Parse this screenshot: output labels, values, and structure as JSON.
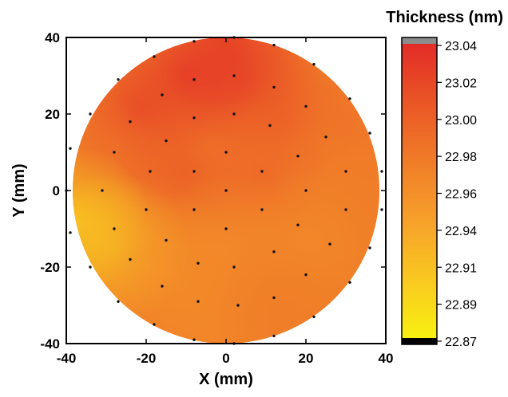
{
  "chart_data": {
    "type": "heatmap",
    "title": "",
    "xlabel": "X (mm)",
    "ylabel": "Y (mm)",
    "xlim": [
      -40,
      40
    ],
    "ylim": [
      -40,
      40
    ],
    "x_ticks": [
      "-40",
      "-20",
      "0",
      "20",
      "40"
    ],
    "y_ticks": [
      "40",
      "20",
      "0",
      "-20",
      "-40"
    ],
    "colorbar": {
      "title": "Thickness (nm)",
      "ticks": [
        "23.04",
        "23.02",
        "23.00",
        "22.98",
        "22.96",
        "22.94",
        "22.91",
        "22.89",
        "22.87"
      ],
      "range": [
        22.87,
        23.04
      ],
      "colors": [
        "#f8f010",
        "#f9c820",
        "#f6a02a",
        "#f07c28",
        "#ea5626",
        "#e32c27"
      ],
      "over_color": "#8c8c8c",
      "under_color": "#000000"
    },
    "wafer": {
      "center": [
        0,
        0
      ],
      "radius_mm": 40
    },
    "thickness_field": [
      {
        "x": 0,
        "y": 40,
        "value": 23.02
      },
      {
        "x": -10,
        "y": 30,
        "value": 23.03
      },
      {
        "x": 5,
        "y": 28,
        "value": 23.03
      },
      {
        "x": -22,
        "y": 20,
        "value": 23.02
      },
      {
        "x": 15,
        "y": 20,
        "value": 23.0
      },
      {
        "x": 30,
        "y": 15,
        "value": 22.98
      },
      {
        "x": -30,
        "y": 5,
        "value": 22.98
      },
      {
        "x": -10,
        "y": 5,
        "value": 23.0
      },
      {
        "x": 8,
        "y": 5,
        "value": 22.99
      },
      {
        "x": 30,
        "y": 0,
        "value": 22.97
      },
      {
        "x": -38,
        "y": -8,
        "value": 22.9
      },
      {
        "x": -28,
        "y": -15,
        "value": 22.91
      },
      {
        "x": -15,
        "y": -20,
        "value": 22.95
      },
      {
        "x": 0,
        "y": -15,
        "value": 22.96
      },
      {
        "x": 20,
        "y": -15,
        "value": 22.96
      },
      {
        "x": -5,
        "y": -35,
        "value": 22.96
      },
      {
        "x": 15,
        "y": -30,
        "value": 22.97
      }
    ],
    "measurement_points": [
      [
        -8,
        39
      ],
      [
        2,
        40
      ],
      [
        12,
        38
      ],
      [
        22,
        33
      ],
      [
        31,
        24
      ],
      [
        36,
        15
      ],
      [
        39,
        5
      ],
      [
        39,
        -5
      ],
      [
        36,
        -15
      ],
      [
        31,
        -24
      ],
      [
        22,
        -33
      ],
      [
        12,
        -38
      ],
      [
        2,
        -40
      ],
      [
        -8,
        -39
      ],
      [
        -18,
        -35
      ],
      [
        -27,
        -29
      ],
      [
        -34,
        -20
      ],
      [
        -39,
        -11
      ],
      [
        -40,
        0
      ],
      [
        -39,
        11
      ],
      [
        -34,
        20
      ],
      [
        -27,
        29
      ],
      [
        -18,
        35
      ],
      [
        -8,
        29
      ],
      [
        2,
        30
      ],
      [
        12,
        27
      ],
      [
        20,
        22
      ],
      [
        25,
        14
      ],
      [
        30,
        5
      ],
      [
        30,
        -5
      ],
      [
        26,
        -14
      ],
      [
        20,
        -22
      ],
      [
        12,
        -28
      ],
      [
        3,
        -30
      ],
      [
        -7,
        -29
      ],
      [
        -16,
        -25
      ],
      [
        -24,
        -18
      ],
      [
        -28,
        -10
      ],
      [
        -31,
        0
      ],
      [
        -28,
        10
      ],
      [
        -24,
        18
      ],
      [
        -16,
        25
      ],
      [
        -8,
        19
      ],
      [
        2,
        20
      ],
      [
        11,
        17
      ],
      [
        18,
        9
      ],
      [
        20,
        0
      ],
      [
        18,
        -9
      ],
      [
        12,
        -16
      ],
      [
        2,
        -20
      ],
      [
        -7,
        -19
      ],
      [
        -15,
        -13
      ],
      [
        -20,
        -5
      ],
      [
        -19,
        5
      ],
      [
        -15,
        13
      ],
      [
        -8,
        5
      ],
      [
        0,
        10
      ],
      [
        9,
        5
      ],
      [
        9,
        -5
      ],
      [
        0,
        -10
      ],
      [
        -8,
        -5
      ],
      [
        0,
        0
      ]
    ]
  }
}
